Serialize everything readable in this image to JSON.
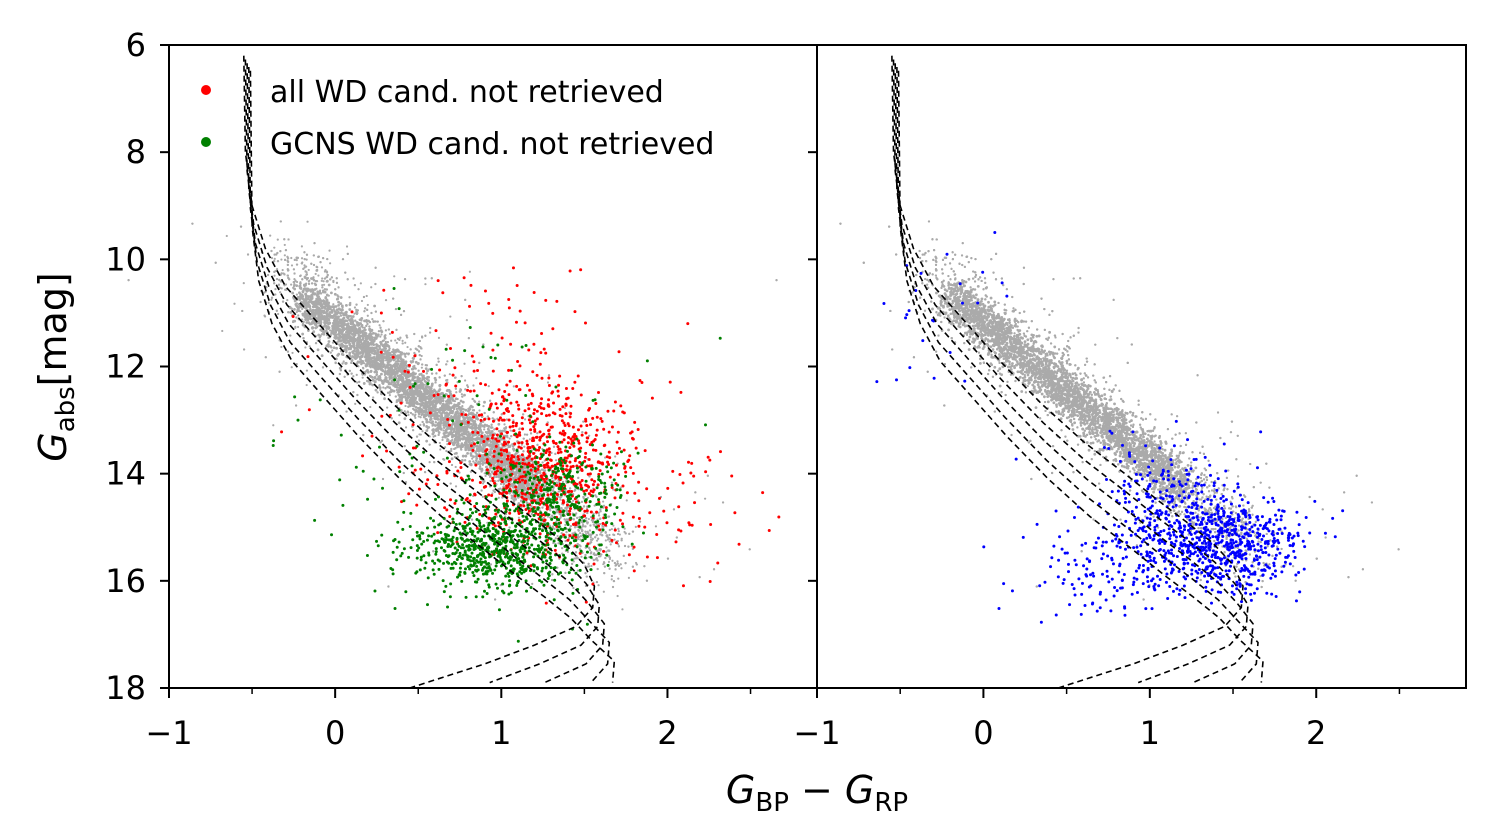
{
  "chart_data": {
    "type": "scatter",
    "xlabel": "G_BP − G_RP",
    "xlabel_parts": {
      "G1": "G",
      "sub1": "BP",
      "minus": " − ",
      "G2": "G",
      "sub2": "RP"
    },
    "ylabel": "G_abs[mag]",
    "ylabel_parts": {
      "G": "G",
      "sub": "abs",
      "unit": "[mag]"
    },
    "ylim": [
      18,
      6
    ],
    "y_ticks": [
      "6",
      "8",
      "10",
      "12",
      "14",
      "16",
      "18"
    ],
    "y_tick_values": [
      6,
      8,
      10,
      12,
      14,
      16,
      18
    ],
    "panels": [
      {
        "name": "left",
        "xlim": [
          -1,
          2.9
        ],
        "x_ticks": [
          "−1",
          "0",
          "1",
          "2"
        ],
        "x_tick_values": [
          -1,
          0,
          1,
          2
        ],
        "legend": {
          "placement": "top-left",
          "entries": [
            {
              "label": "all WD cand. not retrieved",
              "color": "#ff0000"
            },
            {
              "label": "GCNS WD cand. not retrieved",
              "color": "#008000"
            }
          ]
        },
        "series": [
          {
            "name": "background sample",
            "color": "#aaaaaa",
            "kind": "dense main-sequence cloud"
          },
          {
            "name": "all WD cand. not retrieved",
            "color": "#ff0000",
            "centers": [
              {
                "x": 1.25,
                "y": 13.8
              },
              {
                "x": 1.1,
                "y": 14.6
              }
            ],
            "approx_count": 900
          },
          {
            "name": "GCNS WD cand. not retrieved",
            "color": "#008000",
            "centers": [
              {
                "x": 0.95,
                "y": 15.4
              },
              {
                "x": 1.35,
                "y": 14.5
              }
            ],
            "approx_count": 1100
          }
        ]
      },
      {
        "name": "right",
        "xlim": [
          -1,
          2.9
        ],
        "x_ticks": [
          "−1",
          "0",
          "1",
          "2"
        ],
        "x_tick_values": [
          -1,
          0,
          1,
          2
        ],
        "series": [
          {
            "name": "background sample",
            "color": "#aaaaaa",
            "kind": "dense main-sequence cloud"
          },
          {
            "name": "selected sources",
            "color": "#0000ff",
            "centers": [
              {
                "x": 1.35,
                "y": 15.2
              }
            ],
            "approx_count": 1000
          }
        ]
      }
    ],
    "model_curves": {
      "style": "dashed",
      "color": "#000000",
      "count": 5,
      "shift_step": {
        "dx": 0.02,
        "dy": 0.35
      },
      "base_points": [
        [
          -0.55,
          6.2
        ],
        [
          -0.54,
          8.0
        ],
        [
          -0.5,
          9.0
        ],
        [
          -0.42,
          9.8
        ],
        [
          -0.3,
          10.5
        ],
        [
          -0.1,
          11.2
        ],
        [
          0.1,
          11.9
        ],
        [
          0.35,
          12.7
        ],
        [
          0.6,
          13.4
        ],
        [
          0.85,
          14.0
        ],
        [
          1.05,
          14.5
        ],
        [
          1.22,
          14.9
        ],
        [
          1.38,
          15.3
        ],
        [
          1.5,
          15.7
        ],
        [
          1.56,
          16.1
        ],
        [
          1.55,
          16.5
        ],
        [
          1.45,
          16.85
        ],
        [
          1.2,
          17.2
        ],
        [
          0.9,
          17.55
        ],
        [
          0.55,
          17.9
        ],
        [
          0.45,
          18.0
        ]
      ]
    }
  }
}
